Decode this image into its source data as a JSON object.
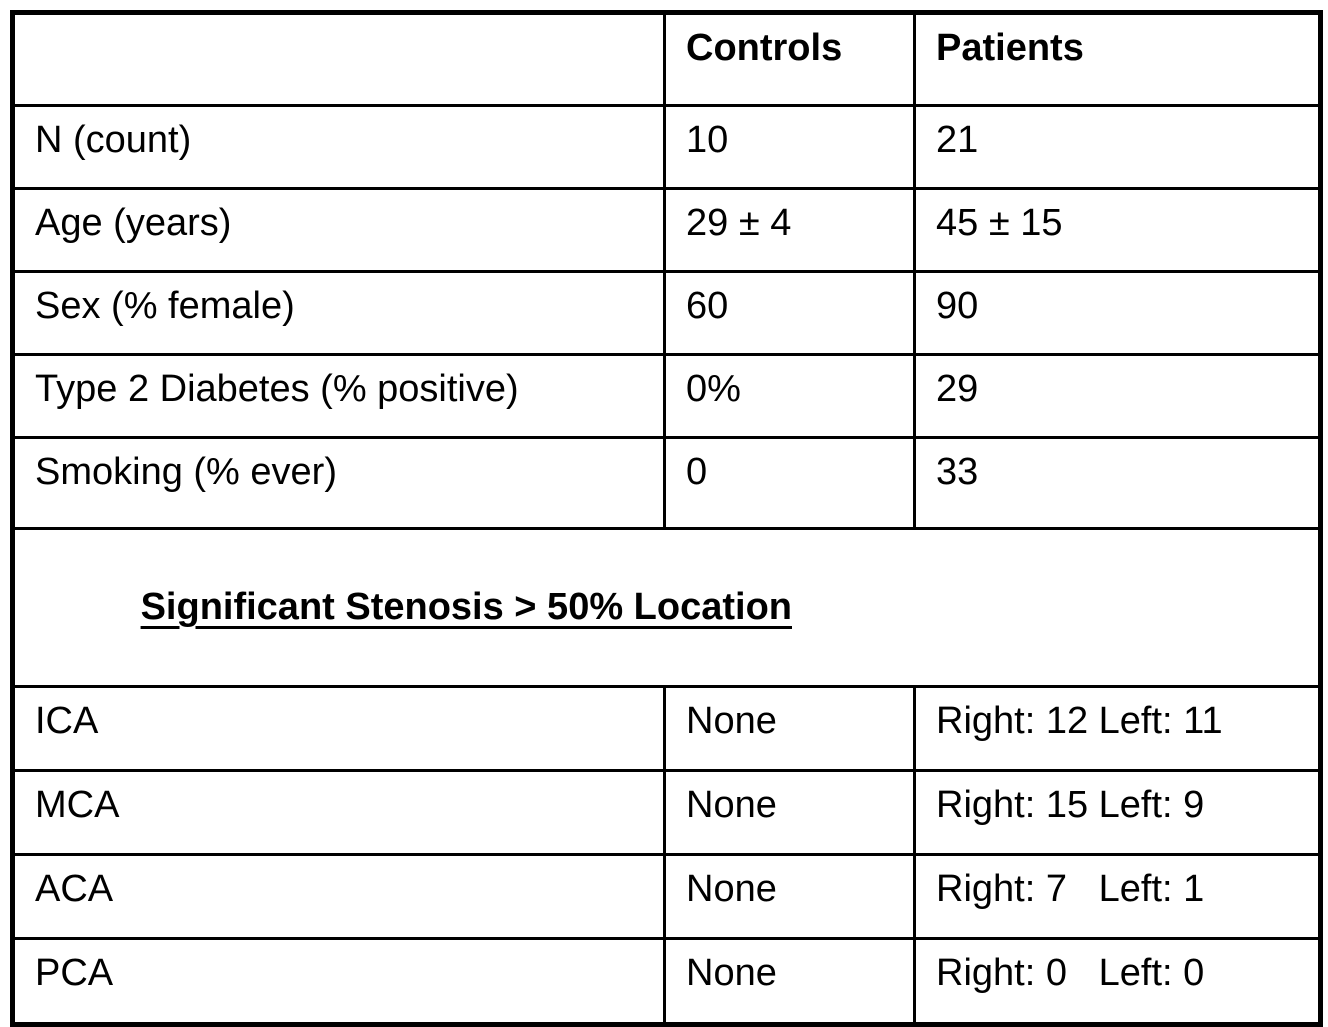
{
  "table": {
    "columns": {
      "label": "",
      "controls": "Controls",
      "patients": "Patients"
    },
    "rows": [
      {
        "label": "N (count)",
        "controls": "10",
        "patients": "21"
      },
      {
        "label": "Age (years)",
        "controls": "29 ± 4",
        "patients": "45 ± 15"
      },
      {
        "label": "Sex (% female)",
        "controls": "60",
        "patients": "90"
      },
      {
        "label": "Type 2 Diabetes (% positive)",
        "controls": "0%",
        "patients": "29"
      },
      {
        "label": "Smoking (% ever)",
        "controls": "0",
        "patients": "33"
      }
    ],
    "section_header": "Significant Stenosis > 50% Location",
    "stenosis_rows": [
      {
        "label": "ICA",
        "controls": "None",
        "patients": "Right: 12 Left: 11"
      },
      {
        "label": "MCA",
        "controls": "None",
        "patients": "Right: 15 Left: 9"
      },
      {
        "label": "ACA",
        "controls": "None",
        "patients": "Right: 7   Left: 1"
      },
      {
        "label": "PCA",
        "controls": "None",
        "patients": "Right: 0   Left: 0"
      }
    ]
  }
}
